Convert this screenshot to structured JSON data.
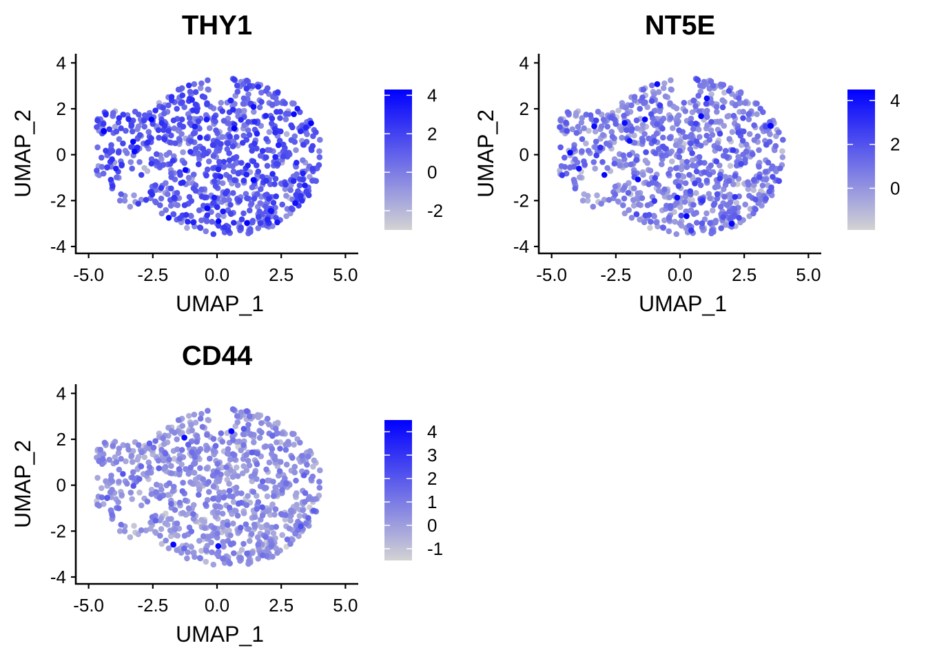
{
  "chart_data": [
    {
      "type": "scatter",
      "title": "THY1",
      "xlabel": "UMAP_1",
      "ylabel": "UMAP_2",
      "xlim": [
        -5.5,
        5.5
      ],
      "ylim": [
        -4.3,
        4.4
      ],
      "xticks": [
        "-5.0",
        "-2.5",
        "0.0",
        "2.5",
        "5.0"
      ],
      "xtick_values": [
        -5,
        -2.5,
        0,
        2.5,
        5
      ],
      "yticks": [
        "-4",
        "-2",
        "0",
        "2",
        "4"
      ],
      "ytick_values": [
        -4,
        -2,
        0,
        2,
        4
      ],
      "grid": false,
      "colorscale": {
        "low": "#d3d3d3",
        "high": "#0000ff"
      },
      "legend": {
        "position": "right",
        "range": [
          -3.0,
          4.3
        ],
        "ticks": [
          "4",
          "2",
          "0",
          "-2"
        ],
        "tick_values": [
          4,
          2,
          0,
          -2
        ]
      },
      "value_mean": 0.8,
      "value_spread": 1.15,
      "n_points": 900
    },
    {
      "type": "scatter",
      "title": "NT5E",
      "xlabel": "UMAP_1",
      "ylabel": "UMAP_2",
      "xlim": [
        -5.5,
        5.5
      ],
      "ylim": [
        -4.3,
        4.4
      ],
      "xticks": [
        "-5.0",
        "-2.5",
        "0.0",
        "2.5",
        "5.0"
      ],
      "xtick_values": [
        -5,
        -2.5,
        0,
        2.5,
        5
      ],
      "yticks": [
        "-4",
        "-2",
        "0",
        "2",
        "4"
      ],
      "ytick_values": [
        -4,
        -2,
        0,
        2,
        4
      ],
      "grid": false,
      "colorscale": {
        "low": "#d3d3d3",
        "high": "#0000ff"
      },
      "legend": {
        "position": "right",
        "range": [
          -1.9,
          4.5
        ],
        "ticks": [
          "4",
          "2",
          "0"
        ],
        "tick_values": [
          4,
          2,
          0
        ]
      },
      "value_mean": 0.45,
      "value_spread": 0.95,
      "n_points": 900
    },
    {
      "type": "scatter",
      "title": "CD44",
      "xlabel": "UMAP_1",
      "ylabel": "UMAP_2",
      "xlim": [
        -5.5,
        5.5
      ],
      "ylim": [
        -4.3,
        4.4
      ],
      "xticks": [
        "-5.0",
        "-2.5",
        "0.0",
        "2.5",
        "5.0"
      ],
      "xtick_values": [
        -5,
        -2.5,
        0,
        2.5,
        5
      ],
      "yticks": [
        "-4",
        "-2",
        "0",
        "2",
        "4"
      ],
      "ytick_values": [
        -4,
        -2,
        0,
        2,
        4
      ],
      "grid": false,
      "colorscale": {
        "low": "#d3d3d3",
        "high": "#0000ff"
      },
      "legend": {
        "position": "right",
        "range": [
          -1.5,
          4.5
        ],
        "ticks": [
          "4",
          "3",
          "2",
          "1",
          "0",
          "-1"
        ],
        "tick_values": [
          4,
          3,
          2,
          1,
          0,
          -1
        ]
      },
      "value_mean": 0.15,
      "value_spread": 0.7,
      "n_points": 900
    }
  ]
}
